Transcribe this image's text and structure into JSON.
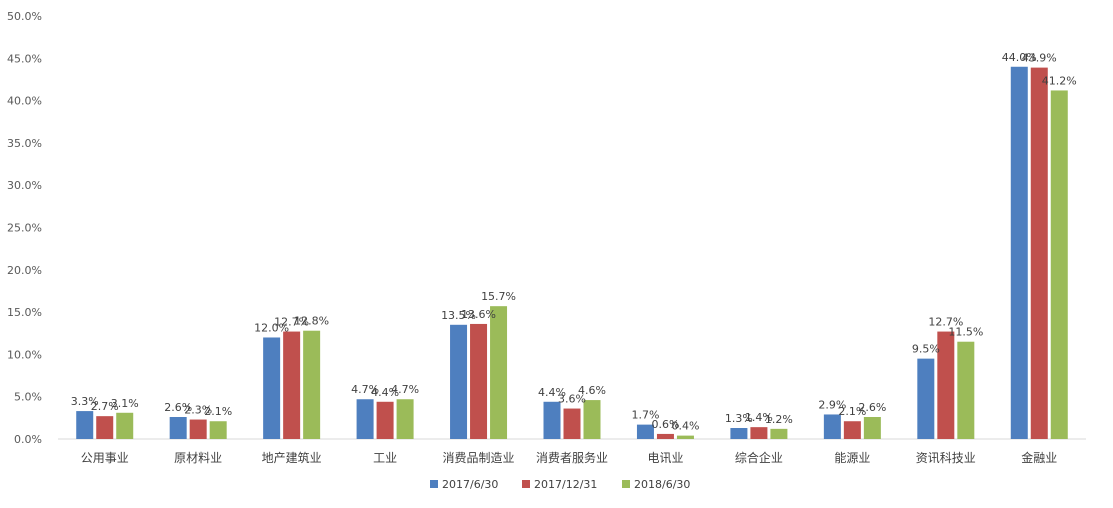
{
  "chart_data": {
    "type": "bar",
    "categories": [
      "公用事业",
      "原材料业",
      "地产建筑业",
      "工业",
      "消费品制造业",
      "消费者服务业",
      "电讯业",
      "综合企业",
      "能源业",
      "资讯科技业",
      "金融业"
    ],
    "series": [
      {
        "name": "2017/6/30",
        "color": "#4e7fbf",
        "values": [
          3.3,
          2.6,
          12.0,
          4.7,
          13.5,
          4.4,
          1.7,
          1.3,
          2.9,
          9.5,
          44.0
        ],
        "labels": [
          "3.3%",
          "2.6%",
          "12.0%",
          "4.7%",
          "13.5%",
          "4.4%",
          "1.7%",
          "1.3%",
          "2.9%",
          "9.5%",
          "44.0%"
        ]
      },
      {
        "name": "2017/12/31",
        "color": "#c0504d",
        "values": [
          2.7,
          2.3,
          12.7,
          4.4,
          13.6,
          3.6,
          0.6,
          1.4,
          2.1,
          12.7,
          43.9
        ],
        "labels": [
          "2.7%",
          "2.3%",
          "12.7%",
          "4.4%",
          "13.6%",
          "3.6%",
          "0.6%",
          "1.4%",
          "2.1%",
          "12.7%",
          "43.9%"
        ]
      },
      {
        "name": "2018/6/30",
        "color": "#9bbb59",
        "values": [
          3.1,
          2.1,
          12.8,
          4.7,
          15.7,
          4.6,
          0.4,
          1.2,
          2.6,
          11.5,
          41.2
        ],
        "labels": [
          "3.1%",
          "2.1%",
          "12.8%",
          "4.7%",
          "15.7%",
          "4.6%",
          "0.4%",
          "1.2%",
          "2.6%",
          "11.5%",
          "41.2%"
        ]
      }
    ],
    "ylim": [
      0,
      50
    ],
    "yticks": [
      "0.0%",
      "5.0%",
      "10.0%",
      "15.0%",
      "20.0%",
      "25.0%",
      "30.0%",
      "35.0%",
      "40.0%",
      "45.0%",
      "50.0%"
    ],
    "grid": false,
    "legend": "bottom-center"
  }
}
